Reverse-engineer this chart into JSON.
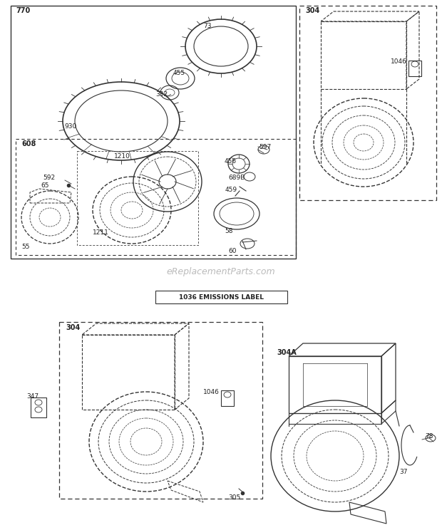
{
  "bg_color": "#ffffff",
  "line_color": "#333333",
  "dash_color": "#555555",
  "text_color": "#222222",
  "watermark_color": "#bbbbbb",
  "watermark_text": "eReplacementParts.com",
  "emissions_label": "1036 EMISSIONS LABEL",
  "figsize": [
    6.2,
    7.44
  ],
  "dpi": 100
}
